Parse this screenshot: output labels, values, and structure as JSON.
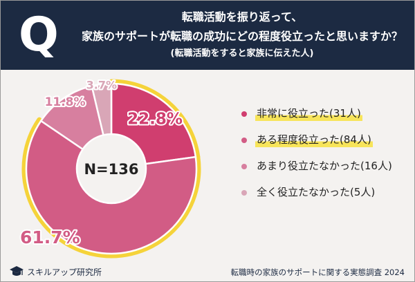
{
  "header": {
    "q_mark": "Q",
    "title_line1": "転職活動を振り返って、",
    "title_line2": "家族のサポートが転職の成功にどの程度役立ったと思いますか？",
    "title_line3": "(転職活動をすると家族に伝えた人)"
  },
  "chart_data": {
    "type": "pie",
    "style": "donut",
    "center_label": "N=136",
    "slices": [
      {
        "label": "非常に役立った(31人)",
        "value": 22.8,
        "value_label": "22.8%",
        "color": "#d03e6f",
        "highlight": true
      },
      {
        "label": "ある程度役立った(84人)",
        "value": 61.7,
        "value_label": "61.7%",
        "color": "#d25c85",
        "highlight": true
      },
      {
        "label": "あまり役立たなかった(16人)",
        "value": 11.8,
        "value_label": "11.8%",
        "color": "#d77f9f",
        "highlight": false
      },
      {
        "label": "全く役立たなかった(5人)",
        "value": 3.7,
        "value_label": "3.7%",
        "color": "#d9a6b7",
        "highlight": false
      }
    ],
    "accent_color": "#f5d33a",
    "legend_position": "right"
  },
  "footer": {
    "brand": "スキルアップ研究所",
    "survey": "転職時の家族のサポートに関する実態調査 2024"
  }
}
